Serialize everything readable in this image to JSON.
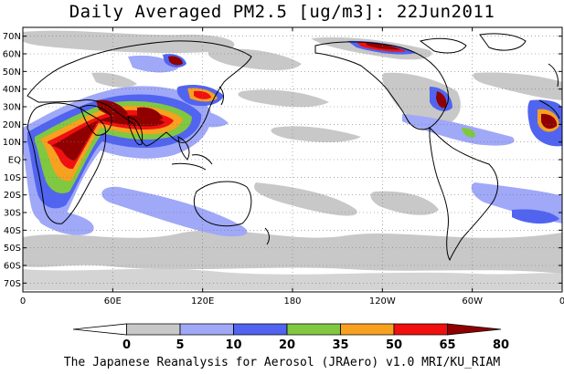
{
  "title": "Daily Averaged PM2.5 [ug/m3]: 22Jun2011",
  "footer": "The Japanese Reanalysis for Aerosol (JRAero) v1.0 MRI/KU_RIAM",
  "map": {
    "lon_range": [
      0,
      360
    ],
    "lat_range": [
      -75,
      75
    ],
    "lat_ticks": [
      {
        "lat": 70,
        "label": "70N"
      },
      {
        "lat": 60,
        "label": "60N"
      },
      {
        "lat": 50,
        "label": "50N"
      },
      {
        "lat": 40,
        "label": "40N"
      },
      {
        "lat": 30,
        "label": "30N"
      },
      {
        "lat": 20,
        "label": "20N"
      },
      {
        "lat": 10,
        "label": "10N"
      },
      {
        "lat": 0,
        "label": "EQ"
      },
      {
        "lat": -10,
        "label": "10S"
      },
      {
        "lat": -20,
        "label": "20S"
      },
      {
        "lat": -30,
        "label": "30S"
      },
      {
        "lat": -40,
        "label": "40S"
      },
      {
        "lat": -50,
        "label": "50S"
      },
      {
        "lat": -60,
        "label": "60S"
      },
      {
        "lat": -70,
        "label": "70S"
      }
    ],
    "lon_ticks": [
      {
        "lon": 0,
        "label": "0"
      },
      {
        "lon": 60,
        "label": "60E"
      },
      {
        "lon": 120,
        "label": "120E"
      },
      {
        "lon": 180,
        "label": "180"
      },
      {
        "lon": 240,
        "label": "120W"
      },
      {
        "lon": 300,
        "label": "60W"
      },
      {
        "lon": 360,
        "label": "0"
      }
    ],
    "grid": "dotted"
  },
  "colorbar": {
    "levels": [
      "0",
      "5",
      "10",
      "20",
      "35",
      "50",
      "65",
      "80"
    ],
    "colors": [
      "#ffffff",
      "#c8c8c8",
      "#a0a8f8",
      "#5064f0",
      "#80c840",
      "#f8a020",
      "#f01010",
      "#900000"
    ]
  }
}
